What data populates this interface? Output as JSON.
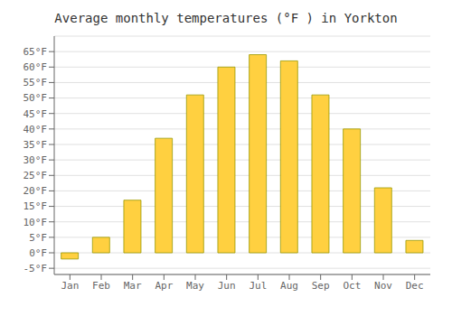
{
  "chart_data": {
    "type": "bar",
    "title": "Average monthly temperatures (°F ) in Yorkton",
    "categories": [
      "Jan",
      "Feb",
      "Mar",
      "Apr",
      "May",
      "Jun",
      "Jul",
      "Aug",
      "Sep",
      "Oct",
      "Nov",
      "Dec"
    ],
    "values": [
      -2,
      5,
      17,
      37,
      51,
      60,
      64,
      62,
      51,
      40,
      21,
      4
    ],
    "color": "#FFD040",
    "ylim": [
      -7,
      70
    ],
    "yticks": [
      {
        "value": -5,
        "label": "-5°F"
      },
      {
        "value": 0,
        "label": "0°F"
      },
      {
        "value": 5,
        "label": "5°F"
      },
      {
        "value": 10,
        "label": "10°F"
      },
      {
        "value": 15,
        "label": "15°F"
      },
      {
        "value": 20,
        "label": "20°F"
      },
      {
        "value": 25,
        "label": "25°F"
      },
      {
        "value": 30,
        "label": "30°F"
      },
      {
        "value": 35,
        "label": "35°F"
      },
      {
        "value": 40,
        "label": "40°F"
      },
      {
        "value": 45,
        "label": "45°F"
      },
      {
        "value": 50,
        "label": "50°F"
      },
      {
        "value": 55,
        "label": "55°F"
      },
      {
        "value": 60,
        "label": "60°F"
      },
      {
        "value": 65,
        "label": "65°F"
      }
    ],
    "grid": true
  }
}
